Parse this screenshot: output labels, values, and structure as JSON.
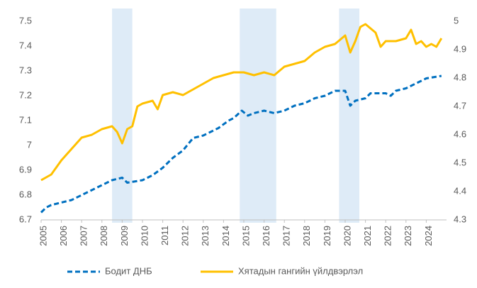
{
  "chart_data": {
    "type": "line",
    "xlim": [
      2005,
      2025
    ],
    "xticks": [
      2005,
      2006,
      2007,
      2008,
      2009,
      2010,
      2011,
      2012,
      2013,
      2014,
      2015,
      2016,
      2017,
      2018,
      2019,
      2020,
      2021,
      2022,
      2023,
      2024
    ],
    "ylim": [
      6.7,
      7.5
    ],
    "yticks": [
      6.7,
      6.8,
      6.9,
      7,
      7.1,
      7.2,
      7.3,
      7.4,
      7.5
    ],
    "y2lim": [
      4.3,
      5
    ],
    "y2ticks": [
      4.3,
      4.4,
      4.5,
      4.6,
      4.7,
      4.8,
      4.9,
      5
    ],
    "shaded_periods": [
      [
        2008.5,
        2009.5
      ],
      [
        2014.8,
        2016.6
      ],
      [
        2019.7,
        2020.7
      ]
    ],
    "shade_color": "#deebf7",
    "legend": "bottom",
    "series": [
      {
        "name": "Бодит ДНБ",
        "color": "#0070c0",
        "dashed": true,
        "x": [
          2005,
          2005.25,
          2005.5,
          2006,
          2006.5,
          2007,
          2007.5,
          2008,
          2008.5,
          2009,
          2009.25,
          2010,
          2010.5,
          2011,
          2011.5,
          2012,
          2012.5,
          2013,
          2013.75,
          2014.25,
          2014.5,
          2014.9,
          2015.2,
          2015.5,
          2016,
          2016.5,
          2017,
          2017.5,
          2018,
          2018.5,
          2019,
          2019.5,
          2020,
          2020.25,
          2020.5,
          2021,
          2021.25,
          2022,
          2022.25,
          2022.5,
          2023,
          2023.5,
          2024,
          2024.75
        ],
        "values": [
          6.73,
          6.75,
          6.76,
          6.77,
          6.78,
          6.8,
          6.82,
          6.84,
          6.86,
          6.87,
          6.85,
          6.86,
          6.88,
          6.91,
          6.95,
          6.98,
          7.03,
          7.04,
          7.07,
          7.1,
          7.11,
          7.14,
          7.12,
          7.13,
          7.14,
          7.13,
          7.14,
          7.16,
          7.17,
          7.19,
          7.2,
          7.22,
          7.22,
          7.16,
          7.18,
          7.19,
          7.21,
          7.21,
          7.2,
          7.22,
          7.23,
          7.25,
          7.27,
          7.28
        ]
      },
      {
        "name": "Хятадын гангийн үйлдвэрлэл",
        "color": "#ffc000",
        "axis": "y2",
        "x": [
          2005,
          2005.5,
          2006,
          2006.5,
          2007,
          2007.5,
          2008,
          2008.5,
          2008.75,
          2009,
          2009.25,
          2009.5,
          2009.75,
          2010,
          2010.5,
          2010.75,
          2011,
          2011.5,
          2012,
          2012.5,
          2013,
          2013.5,
          2014,
          2014.5,
          2015,
          2015.5,
          2016,
          2016.5,
          2017,
          2017.5,
          2018,
          2018.5,
          2019,
          2019.5,
          2020,
          2020.25,
          2020.5,
          2020.75,
          2021,
          2021.5,
          2021.75,
          2022,
          2022.5,
          2023,
          2023.25,
          2023.5,
          2023.75,
          2024,
          2024.25,
          2024.5,
          2024.75
        ],
        "values": [
          4.44,
          4.46,
          4.51,
          4.55,
          4.59,
          4.6,
          4.62,
          4.63,
          4.61,
          4.57,
          4.62,
          4.63,
          4.7,
          4.71,
          4.72,
          4.69,
          4.74,
          4.75,
          4.74,
          4.76,
          4.78,
          4.8,
          4.81,
          4.82,
          4.82,
          4.81,
          4.82,
          4.81,
          4.84,
          4.85,
          4.86,
          4.89,
          4.91,
          4.92,
          4.95,
          4.89,
          4.93,
          4.98,
          4.99,
          4.96,
          4.91,
          4.93,
          4.93,
          4.94,
          4.97,
          4.92,
          4.93,
          4.91,
          4.92,
          4.91,
          4.94
        ]
      }
    ]
  }
}
